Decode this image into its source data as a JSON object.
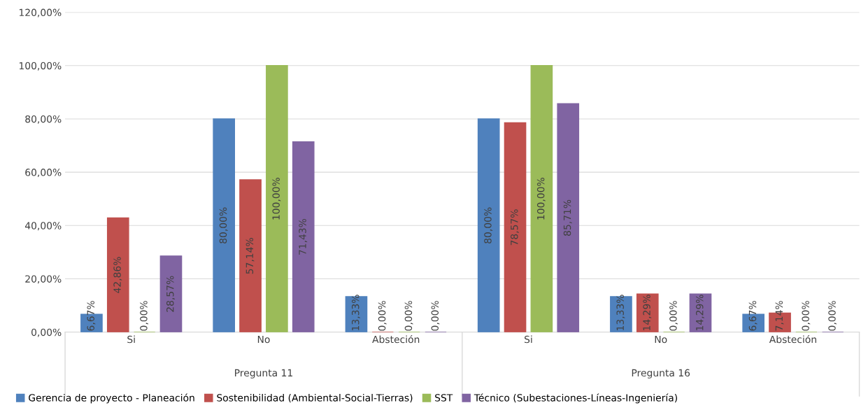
{
  "chart_data": {
    "type": "bar",
    "categories": [
      "Si",
      "No",
      "Absteción",
      "Si",
      "No",
      "Absteción"
    ],
    "series": [
      {
        "name": "Gerencia de proyecto - Planeación",
        "color": "#4f81bd",
        "values": [
          6.67,
          80,
          13.33,
          80,
          13.33,
          6.67
        ],
        "value_labels": [
          "6,67%",
          "80,00%",
          "13,33%",
          "80,00%",
          "13,33%",
          "6,67%"
        ]
      },
      {
        "name": "Sostenibilidad (Ambiental-Social-Tierras)",
        "color": "#c0504d",
        "values": [
          42.86,
          57.14,
          0,
          78.57,
          14.29,
          7.14
        ],
        "value_labels": [
          "42,86%",
          "57,14%",
          "0,00%",
          "78,57%",
          "14,29%",
          "7,14%"
        ]
      },
      {
        "name": "SST",
        "color": "#9bbb59",
        "values": [
          0,
          100,
          0,
          100,
          0,
          0
        ],
        "value_labels": [
          "0,00%",
          "100,00%",
          "0,00%",
          "100,00%",
          "0,00%",
          "0,00%"
        ]
      },
      {
        "name": "Técnico (Subestaciones-Líneas-Ingeniería)",
        "color": "#8064a2",
        "values": [
          28.57,
          71.43,
          0,
          85.71,
          14.29,
          0
        ],
        "value_labels": [
          "28,57%",
          "71,43%",
          "0,00%",
          "85,71%",
          "14,29%",
          "0,00%"
        ]
      }
    ],
    "annotations": [
      "Pregunta 11",
      "Pregunta 16"
    ],
    "ylim": [
      0,
      120
    ],
    "yticks": [
      {
        "value": 0,
        "label": "0,00%"
      },
      {
        "value": 20,
        "label": "20,00%"
      },
      {
        "value": 40,
        "label": "40,00%"
      },
      {
        "value": 60,
        "label": "60,00%"
      },
      {
        "value": 80,
        "label": "80,00%"
      },
      {
        "value": 100,
        "label": "100,00%"
      },
      {
        "value": 120,
        "label": "120,00%"
      }
    ],
    "grid": "y",
    "legend": "bottom"
  }
}
